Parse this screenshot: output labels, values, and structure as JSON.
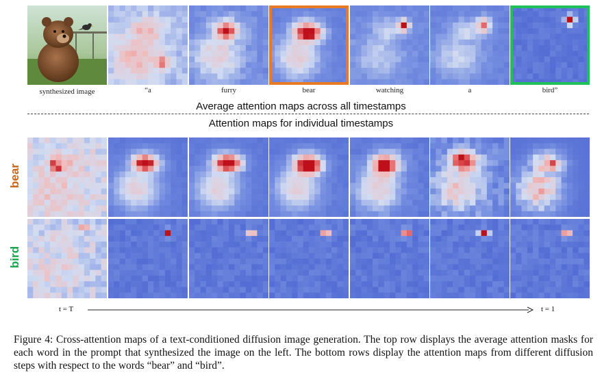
{
  "top_captions": [
    "synthesized image",
    "“a",
    "furry",
    "bear",
    "watching",
    "a",
    "bird”"
  ],
  "heading_average": "Average attention maps across all timestamps",
  "heading_individual": "Attention maps for individual  timestamps",
  "row_labels": {
    "bear": "bear",
    "bird": "bird"
  },
  "time_labels": {
    "start": "t = T",
    "end": "t = 1"
  },
  "caption": "Figure 4: Cross-attention maps of a text-conditioned diffusion image generation. The top row displays the average attention masks for each word in the prompt that synthesized the image on the left. The bottom rows display the attention maps from different diffusion steps with respect to the words “bear” and “bird”.",
  "colors": {
    "highlight_bear": "#e87a24",
    "highlight_bird": "#1fbf5a",
    "label_bear": "#c8661a",
    "label_bird": "#1aa64c",
    "map_low": "#3a55cc",
    "map_high": "#c0101a"
  }
}
